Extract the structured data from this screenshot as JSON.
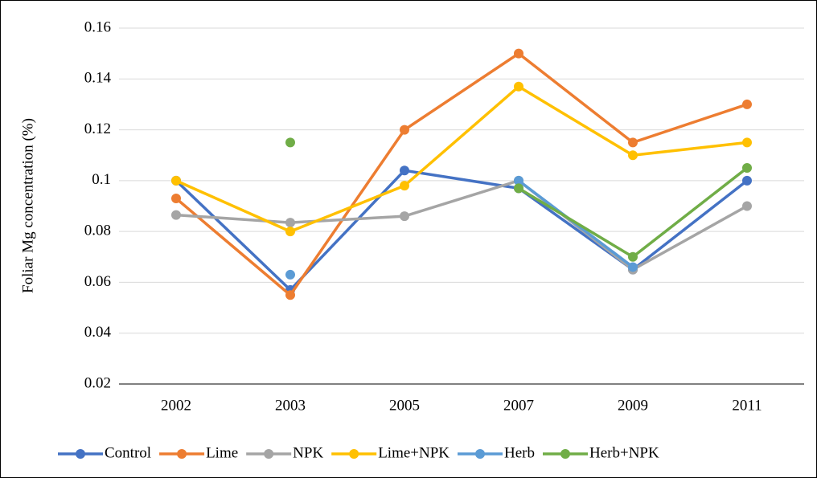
{
  "chart_data": {
    "type": "line",
    "y_label": "Foliar Mg concentration (%)",
    "categories": [
      "2002",
      "2003",
      "2005",
      "2007",
      "2009",
      "2011"
    ],
    "series": [
      {
        "name": "Control",
        "color": "#4472c4",
        "values": [
          0.1,
          0.057,
          0.104,
          0.097,
          0.065,
          0.1
        ]
      },
      {
        "name": "Lime",
        "color": "#ed7d31",
        "values": [
          0.093,
          0.055,
          0.12,
          0.15,
          0.115,
          0.13
        ]
      },
      {
        "name": "NPK",
        "color": "#a5a5a5",
        "values": [
          0.0865,
          0.0835,
          0.086,
          0.1,
          0.065,
          0.09
        ]
      },
      {
        "name": "Lime+NPK",
        "color": "#ffc000",
        "values": [
          0.1,
          0.08,
          0.098,
          0.137,
          0.11,
          0.115
        ]
      },
      {
        "name": "Herb",
        "color": "#5b9bd5",
        "values": [
          null,
          0.063,
          null,
          0.1,
          0.066,
          null
        ]
      },
      {
        "name": "Herb+NPK",
        "color": "#70ad47",
        "values": [
          null,
          0.115,
          null,
          0.097,
          0.07,
          0.105
        ]
      }
    ],
    "ylim": [
      0.02,
      0.16
    ],
    "yticks": [
      0.02,
      0.04,
      0.06,
      0.08,
      0.1,
      0.12,
      0.14,
      0.16
    ],
    "grid": true,
    "legend": "bottom"
  }
}
